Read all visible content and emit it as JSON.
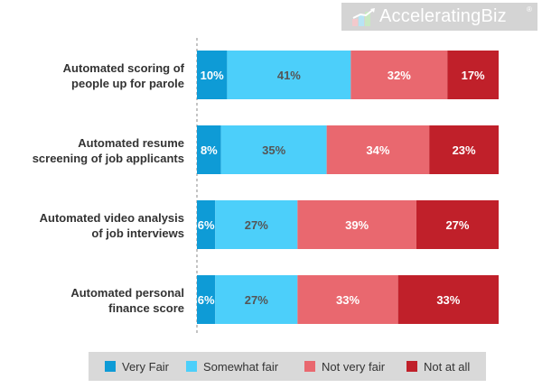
{
  "brand": {
    "name": "AcceleratingBiz",
    "reg_mark": "®"
  },
  "chart_data": {
    "type": "bar",
    "orientation": "horizontal",
    "stacked": true,
    "percent_stacked": true,
    "categories": [
      "Automated scoring of people up for parole",
      "Automated resume screening of job applicants",
      "Automated video analysis of job interviews",
      "Automated personal finance score"
    ],
    "category_lines": [
      [
        "Automated scoring of",
        "people up for parole"
      ],
      [
        "Automated resume",
        "screening of job applicants"
      ],
      [
        "Automated video analysis",
        "of job interviews"
      ],
      [
        "Automated personal",
        "finance score"
      ]
    ],
    "series": [
      {
        "name": "Very Fair",
        "color": "#0e9bd6",
        "label_color": "#ffffff",
        "values": [
          10,
          8,
          6,
          6
        ]
      },
      {
        "name": "Somewhat fair",
        "color": "#4ccffa",
        "label_color": "#555555",
        "values": [
          41,
          35,
          27,
          27
        ]
      },
      {
        "name": "Not very fair",
        "color": "#e9686f",
        "label_color": "#ffffff",
        "values": [
          32,
          34,
          39,
          33
        ]
      },
      {
        "name": "Not at all",
        "color": "#c0202a",
        "label_color": "#ffffff",
        "values": [
          17,
          23,
          27,
          33
        ]
      }
    ],
    "value_suffix": "%",
    "legend_position": "bottom",
    "grid": false,
    "legend_background": "#d9d9d9"
  }
}
